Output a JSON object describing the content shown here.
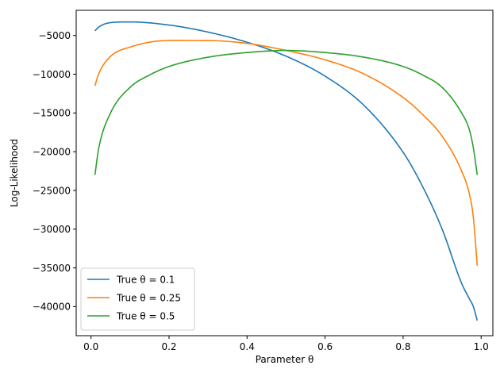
{
  "chart_data": {
    "type": "line",
    "title": "",
    "xlabel": "Parameter θ",
    "ylabel": "Log-Likelihood",
    "xlim": [
      -0.038,
      1.03
    ],
    "ylim": [
      -43750,
      -1750
    ],
    "xticks": [
      0.0,
      0.2,
      0.4,
      0.6,
      0.8,
      1.0
    ],
    "xtick_labels": [
      "0.0",
      "0.2",
      "0.4",
      "0.6",
      "0.8",
      "1.0"
    ],
    "yticks": [
      -40000,
      -35000,
      -30000,
      -25000,
      -20000,
      -15000,
      -10000,
      -5000
    ],
    "ytick_labels": [
      "−40000",
      "−35000",
      "−30000",
      "−25000",
      "−20000",
      "−15000",
      "−10000",
      "−5000"
    ],
    "grid": false,
    "legend_position": "lower-left",
    "series": [
      {
        "name": "True θ = 0.1",
        "color": "#1f77b4",
        "x": [
          0.01,
          0.02,
          0.05,
          0.1,
          0.2,
          0.3,
          0.4,
          0.5,
          0.6,
          0.7,
          0.8,
          0.85,
          0.9,
          0.95,
          0.97,
          0.98,
          0.99
        ],
        "y": [
          -4400,
          -3900,
          -3340,
          -3250,
          -3650,
          -4560,
          -5870,
          -7670,
          -10250,
          -14040,
          -20080,
          -24500,
          -30000,
          -37000,
          -39000,
          -40000,
          -41800
        ]
      },
      {
        "name": "True θ = 0.25",
        "color": "#ff7f0e",
        "x": [
          0.01,
          0.02,
          0.05,
          0.1,
          0.2,
          0.3,
          0.4,
          0.5,
          0.6,
          0.7,
          0.8,
          0.85,
          0.9,
          0.95,
          0.97,
          0.98,
          0.99
        ],
        "y": [
          -11500,
          -9900,
          -7700,
          -6500,
          -5640,
          -5650,
          -6020,
          -6930,
          -8140,
          -9980,
          -13000,
          -15200,
          -18000,
          -22500,
          -25500,
          -28500,
          -34700
        ]
      },
      {
        "name": "True θ = 0.5",
        "color": "#2ca02c",
        "x": [
          0.01,
          0.02,
          0.05,
          0.1,
          0.15,
          0.2,
          0.3,
          0.4,
          0.5,
          0.6,
          0.7,
          0.8,
          0.85,
          0.9,
          0.95,
          0.97,
          0.98,
          0.99
        ],
        "y": [
          -23000,
          -19500,
          -15000,
          -11700,
          -10100,
          -9000,
          -7800,
          -7200,
          -6930,
          -7200,
          -7800,
          -9000,
          -10100,
          -11700,
          -15000,
          -17200,
          -19500,
          -23000
        ]
      }
    ]
  }
}
